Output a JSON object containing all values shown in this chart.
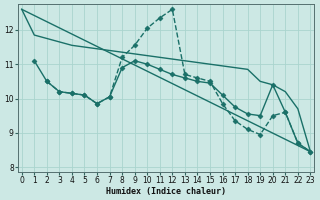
{
  "xlabel": "Humidex (Indice chaleur)",
  "xlim": [
    -0.3,
    23.3
  ],
  "ylim": [
    7.85,
    12.75
  ],
  "yticks": [
    8,
    9,
    10,
    11,
    12
  ],
  "xticks": [
    0,
    1,
    2,
    3,
    4,
    5,
    6,
    7,
    8,
    9,
    10,
    11,
    12,
    13,
    14,
    15,
    16,
    17,
    18,
    19,
    20,
    21,
    22,
    23
  ],
  "bg_color": "#cce8e4",
  "line_color": "#1a7068",
  "grid_color": "#aad4ce",
  "lines": [
    {
      "x": [
        0,
        1,
        2,
        3,
        4,
        5,
        6,
        7,
        8,
        9,
        10,
        11,
        12,
        13,
        14,
        15,
        16,
        17,
        18,
        19,
        20,
        21,
        22,
        23
      ],
      "y": [
        12.6,
        11.85,
        11.75,
        11.65,
        11.55,
        11.5,
        11.45,
        11.4,
        11.35,
        11.3,
        11.25,
        11.2,
        11.15,
        11.1,
        11.05,
        11.0,
        10.95,
        10.9,
        10.85,
        10.5,
        10.4,
        10.2,
        9.7,
        8.45
      ],
      "style": "-",
      "marker": "",
      "markersize": 0,
      "linewidth": 1.0
    },
    {
      "x": [
        1,
        2,
        3,
        4,
        5,
        6,
        7,
        8,
        9,
        10,
        11,
        12,
        13,
        14,
        15,
        16,
        17,
        18,
        19,
        20,
        21,
        22,
        23
      ],
      "y": [
        11.1,
        10.5,
        10.2,
        10.15,
        10.1,
        9.85,
        10.05,
        10.9,
        11.1,
        11.0,
        10.85,
        10.7,
        10.6,
        10.5,
        10.45,
        10.1,
        9.75,
        9.55,
        9.5,
        10.4,
        9.6,
        8.7,
        8.45
      ],
      "style": "-",
      "marker": "D",
      "markersize": 2.5,
      "linewidth": 1.0
    },
    {
      "x": [
        2,
        3,
        4,
        5,
        6,
        7,
        8,
        9,
        10,
        11,
        12,
        13,
        14,
        15,
        16,
        17,
        18,
        19,
        20,
        21,
        22,
        23
      ],
      "y": [
        10.5,
        10.2,
        10.15,
        10.1,
        9.85,
        10.05,
        11.2,
        11.55,
        12.05,
        12.35,
        12.6,
        10.7,
        10.6,
        10.5,
        9.85,
        9.35,
        9.1,
        8.95,
        9.5,
        9.6,
        8.7,
        8.45
      ],
      "style": "--",
      "marker": "D",
      "markersize": 2.5,
      "linewidth": 1.0
    },
    {
      "x": [
        0,
        23
      ],
      "y": [
        12.6,
        8.45
      ],
      "style": "-",
      "marker": "",
      "markersize": 0,
      "linewidth": 1.0
    }
  ]
}
